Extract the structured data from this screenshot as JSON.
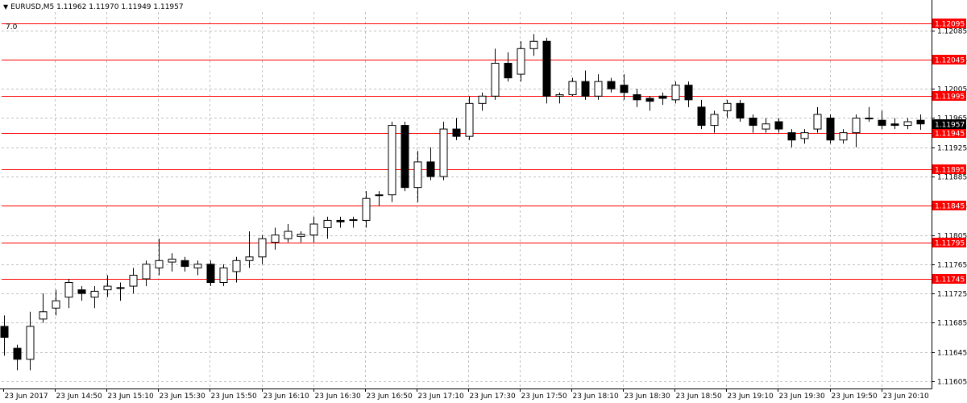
{
  "header": {
    "symbol": "EURUSD,M5",
    "ohlc": "1.11962 1.11970 1.11949 1.11957",
    "indicator_label": "7.0"
  },
  "colors": {
    "background": "#ffffff",
    "grid": "#c0c0c0",
    "level_line": "#ff0000",
    "bull_body": "#ffffff",
    "bear_body": "#000000",
    "wick": "#000000",
    "current_price_bg": "#000000",
    "current_price_text": "#ffffff",
    "level_label_bg": "#ff0000",
    "level_label_text": "#ffffff"
  },
  "chart_data": {
    "type": "candlestick",
    "symbol": "EURUSD",
    "timeframe": "M5",
    "ylim": [
      1.11595,
      1.1211
    ],
    "grid": true,
    "price_ticks": [
      "1.12085",
      "1.12045",
      "1.12005",
      "1.11965",
      "1.11925",
      "1.11885",
      "1.11845",
      "1.11805",
      "1.11765",
      "1.11725",
      "1.11685",
      "1.11645",
      "1.11605"
    ],
    "time_labels": [
      "23 Jun 2017",
      "23 Jun 14:50",
      "23 Jun 15:10",
      "23 Jun 15:30",
      "23 Jun 15:50",
      "23 Jun 16:10",
      "23 Jun 16:30",
      "23 Jun 16:50",
      "23 Jun 17:10",
      "23 Jun 17:30",
      "23 Jun 17:50",
      "23 Jun 18:10",
      "23 Jun 18:30",
      "23 Jun 18:50",
      "23 Jun 19:10",
      "23 Jun 19:30",
      "23 Jun 19:50",
      "23 Jun 20:10"
    ],
    "current_price": "1.11957",
    "levels": [
      "1.12095",
      "1.12045",
      "1.11995",
      "1.11945",
      "1.11895",
      "1.11845",
      "1.11795",
      "1.11745"
    ],
    "candles": [
      {
        "o": 1.1168,
        "h": 1.11695,
        "l": 1.1164,
        "c": 1.11665
      },
      {
        "o": 1.1165,
        "h": 1.11655,
        "l": 1.1162,
        "c": 1.11635
      },
      {
        "o": 1.11635,
        "h": 1.117,
        "l": 1.1162,
        "c": 1.1168
      },
      {
        "o": 1.1169,
        "h": 1.11725,
        "l": 1.11685,
        "c": 1.117
      },
      {
        "o": 1.11705,
        "h": 1.1173,
        "l": 1.11695,
        "c": 1.11715
      },
      {
        "o": 1.1172,
        "h": 1.11745,
        "l": 1.11705,
        "c": 1.1174
      },
      {
        "o": 1.1173,
        "h": 1.11735,
        "l": 1.11715,
        "c": 1.11725
      },
      {
        "o": 1.1172,
        "h": 1.11735,
        "l": 1.11705,
        "c": 1.11728
      },
      {
        "o": 1.1173,
        "h": 1.1175,
        "l": 1.1172,
        "c": 1.11735
      },
      {
        "o": 1.11733,
        "h": 1.1174,
        "l": 1.11715,
        "c": 1.11732
      },
      {
        "o": 1.11735,
        "h": 1.1176,
        "l": 1.11725,
        "c": 1.1175
      },
      {
        "o": 1.11745,
        "h": 1.1177,
        "l": 1.11735,
        "c": 1.11765
      },
      {
        "o": 1.1176,
        "h": 1.118,
        "l": 1.1175,
        "c": 1.1177
      },
      {
        "o": 1.11768,
        "h": 1.1178,
        "l": 1.11755,
        "c": 1.11772
      },
      {
        "o": 1.1177,
        "h": 1.11775,
        "l": 1.11755,
        "c": 1.11762
      },
      {
        "o": 1.1176,
        "h": 1.1177,
        "l": 1.1175,
        "c": 1.11765
      },
      {
        "o": 1.11765,
        "h": 1.1177,
        "l": 1.11735,
        "c": 1.1174
      },
      {
        "o": 1.1174,
        "h": 1.11765,
        "l": 1.11735,
        "c": 1.1176
      },
      {
        "o": 1.11755,
        "h": 1.11775,
        "l": 1.1174,
        "c": 1.1177
      },
      {
        "o": 1.1177,
        "h": 1.1181,
        "l": 1.1176,
        "c": 1.11775
      },
      {
        "o": 1.11775,
        "h": 1.11805,
        "l": 1.11765,
        "c": 1.118
      },
      {
        "o": 1.11795,
        "h": 1.11815,
        "l": 1.11785,
        "c": 1.11805
      },
      {
        "o": 1.118,
        "h": 1.1182,
        "l": 1.11795,
        "c": 1.1181
      },
      {
        "o": 1.11803,
        "h": 1.1181,
        "l": 1.11795,
        "c": 1.11806
      },
      {
        "o": 1.11805,
        "h": 1.1183,
        "l": 1.11795,
        "c": 1.1182
      },
      {
        "o": 1.11815,
        "h": 1.1183,
        "l": 1.118,
        "c": 1.11825
      },
      {
        "o": 1.11825,
        "h": 1.1183,
        "l": 1.11815,
        "c": 1.11823
      },
      {
        "o": 1.11825,
        "h": 1.1183,
        "l": 1.11815,
        "c": 1.11826
      },
      {
        "o": 1.11825,
        "h": 1.11865,
        "l": 1.11815,
        "c": 1.11855
      },
      {
        "o": 1.1186,
        "h": 1.11865,
        "l": 1.11845,
        "c": 1.1186
      },
      {
        "o": 1.1186,
        "h": 1.1196,
        "l": 1.1185,
        "c": 1.11955
      },
      {
        "o": 1.11955,
        "h": 1.1196,
        "l": 1.11865,
        "c": 1.1187
      },
      {
        "o": 1.1187,
        "h": 1.1192,
        "l": 1.1185,
        "c": 1.11905
      },
      {
        "o": 1.11905,
        "h": 1.11925,
        "l": 1.1188,
        "c": 1.11885
      },
      {
        "o": 1.11885,
        "h": 1.1196,
        "l": 1.1188,
        "c": 1.1195
      },
      {
        "o": 1.1195,
        "h": 1.11965,
        "l": 1.11935,
        "c": 1.1194
      },
      {
        "o": 1.1194,
        "h": 1.11995,
        "l": 1.11935,
        "c": 1.11985
      },
      {
        "o": 1.11985,
        "h": 1.12,
        "l": 1.11975,
        "c": 1.11995
      },
      {
        "o": 1.11995,
        "h": 1.1206,
        "l": 1.1199,
        "c": 1.1204
      },
      {
        "o": 1.1204,
        "h": 1.12055,
        "l": 1.12015,
        "c": 1.1202
      },
      {
        "o": 1.12025,
        "h": 1.1207,
        "l": 1.12015,
        "c": 1.1206
      },
      {
        "o": 1.1206,
        "h": 1.1208,
        "l": 1.1205,
        "c": 1.1207
      },
      {
        "o": 1.1207,
        "h": 1.12075,
        "l": 1.11985,
        "c": 1.11995
      },
      {
        "o": 1.11995,
        "h": 1.12,
        "l": 1.11985,
        "c": 1.11997
      },
      {
        "o": 1.11997,
        "h": 1.1202,
        "l": 1.11995,
        "c": 1.12015
      },
      {
        "o": 1.12015,
        "h": 1.1203,
        "l": 1.1199,
        "c": 1.11995
      },
      {
        "o": 1.11995,
        "h": 1.12025,
        "l": 1.1199,
        "c": 1.12015
      },
      {
        "o": 1.12015,
        "h": 1.1202,
        "l": 1.12,
        "c": 1.12005
      },
      {
        "o": 1.1201,
        "h": 1.12025,
        "l": 1.1199,
        "c": 1.12
      },
      {
        "o": 1.11997,
        "h": 1.12005,
        "l": 1.1198,
        "c": 1.1199
      },
      {
        "o": 1.11992,
        "h": 1.11995,
        "l": 1.11975,
        "c": 1.11988
      },
      {
        "o": 1.11995,
        "h": 1.12,
        "l": 1.11983,
        "c": 1.11992
      },
      {
        "o": 1.1199,
        "h": 1.12015,
        "l": 1.11985,
        "c": 1.1201
      },
      {
        "o": 1.1201,
        "h": 1.12015,
        "l": 1.1198,
        "c": 1.1199
      },
      {
        "o": 1.1198,
        "h": 1.1199,
        "l": 1.1195,
        "c": 1.11955
      },
      {
        "o": 1.11955,
        "h": 1.11975,
        "l": 1.11945,
        "c": 1.1197
      },
      {
        "o": 1.11975,
        "h": 1.1199,
        "l": 1.11965,
        "c": 1.11985
      },
      {
        "o": 1.11985,
        "h": 1.1199,
        "l": 1.1196,
        "c": 1.11965
      },
      {
        "o": 1.11965,
        "h": 1.1197,
        "l": 1.11945,
        "c": 1.11955
      },
      {
        "o": 1.1195,
        "h": 1.11965,
        "l": 1.11945,
        "c": 1.11957
      },
      {
        "o": 1.1196,
        "h": 1.11965,
        "l": 1.11945,
        "c": 1.1195
      },
      {
        "o": 1.11945,
        "h": 1.1195,
        "l": 1.11925,
        "c": 1.11935
      },
      {
        "o": 1.11937,
        "h": 1.1195,
        "l": 1.1193,
        "c": 1.11945
      },
      {
        "o": 1.1195,
        "h": 1.1198,
        "l": 1.11945,
        "c": 1.1197
      },
      {
        "o": 1.11965,
        "h": 1.1197,
        "l": 1.1193,
        "c": 1.11935
      },
      {
        "o": 1.11935,
        "h": 1.1195,
        "l": 1.1193,
        "c": 1.11945
      },
      {
        "o": 1.11945,
        "h": 1.1197,
        "l": 1.11925,
        "c": 1.11965
      },
      {
        "o": 1.11965,
        "h": 1.1198,
        "l": 1.1196,
        "c": 1.11965
      },
      {
        "o": 1.11962,
        "h": 1.11975,
        "l": 1.1195,
        "c": 1.11955
      },
      {
        "o": 1.11957,
        "h": 1.11965,
        "l": 1.1195,
        "c": 1.11955
      },
      {
        "o": 1.11955,
        "h": 1.11965,
        "l": 1.1195,
        "c": 1.1196
      },
      {
        "o": 1.11962,
        "h": 1.1197,
        "l": 1.11949,
        "c": 1.11957
      }
    ]
  }
}
